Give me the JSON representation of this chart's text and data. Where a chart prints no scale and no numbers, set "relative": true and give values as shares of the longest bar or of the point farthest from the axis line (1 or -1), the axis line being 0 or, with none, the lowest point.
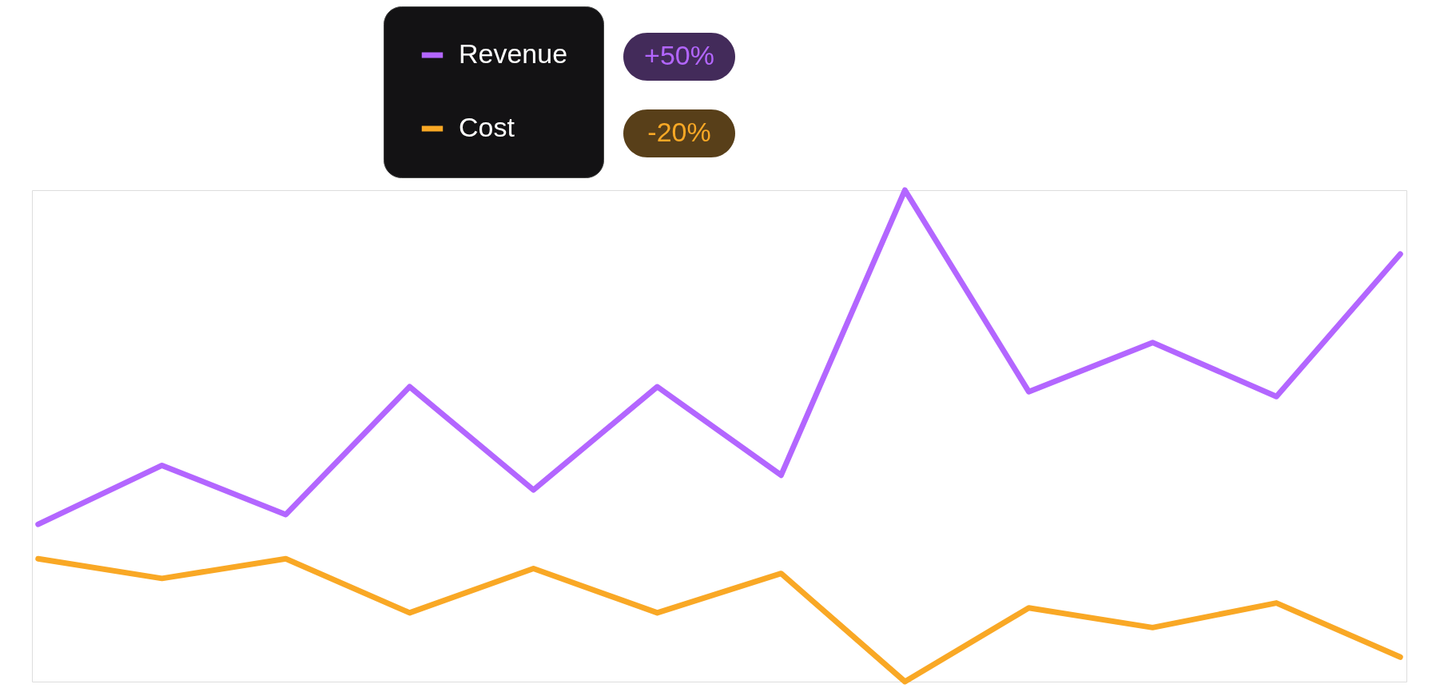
{
  "chart_data": {
    "type": "line",
    "relative": true,
    "categories": [
      null,
      null,
      null,
      null,
      null,
      null,
      null,
      null,
      null,
      null,
      null,
      null
    ],
    "series": [
      {
        "name": "Revenue",
        "color": "#b366ff",
        "values": [
          0.32,
          0.44,
          0.34,
          0.6,
          0.39,
          0.6,
          0.42,
          1.0,
          0.59,
          0.69,
          0.58,
          0.87
        ]
      },
      {
        "name": "Cost",
        "color": "#f9a825",
        "values": [
          0.25,
          0.21,
          0.25,
          0.14,
          0.23,
          0.14,
          0.22,
          0.0,
          0.15,
          0.11,
          0.16,
          0.05
        ]
      }
    ],
    "annotations": [
      "+50%",
      "-20%"
    ],
    "line_style": "solid",
    "marker": "none",
    "legend": "top"
  }
}
